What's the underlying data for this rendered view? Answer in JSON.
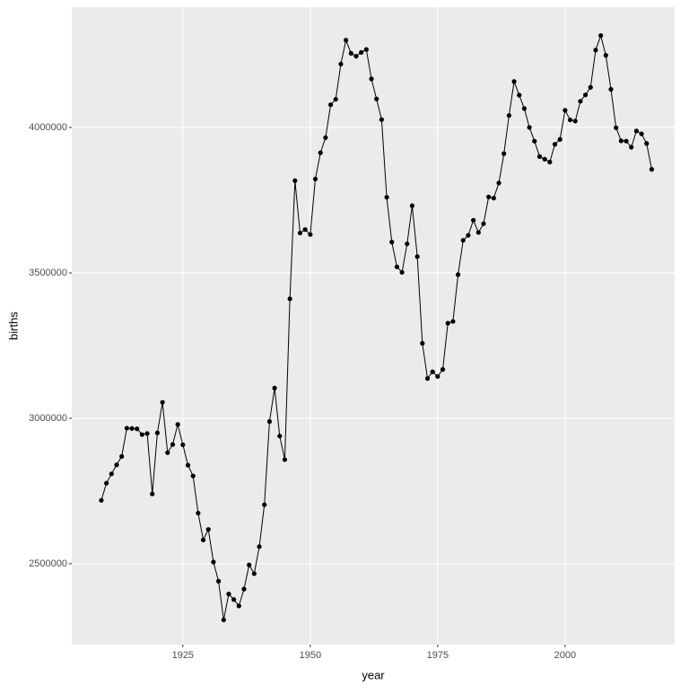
{
  "chart_data": {
    "type": "line",
    "x_label": "year",
    "y_label": "births",
    "x": [
      1909,
      1910,
      1911,
      1912,
      1913,
      1914,
      1915,
      1916,
      1917,
      1918,
      1919,
      1920,
      1921,
      1922,
      1923,
      1924,
      1925,
      1926,
      1927,
      1928,
      1929,
      1930,
      1931,
      1932,
      1933,
      1934,
      1935,
      1936,
      1937,
      1938,
      1939,
      1940,
      1941,
      1942,
      1943,
      1944,
      1945,
      1946,
      1947,
      1948,
      1949,
      1950,
      1951,
      1952,
      1953,
      1954,
      1955,
      1956,
      1957,
      1958,
      1959,
      1960,
      1961,
      1962,
      1963,
      1964,
      1965,
      1966,
      1967,
      1968,
      1969,
      1970,
      1971,
      1972,
      1973,
      1974,
      1975,
      1976,
      1977,
      1978,
      1979,
      1980,
      1981,
      1982,
      1983,
      1984,
      1985,
      1986,
      1987,
      1988,
      1989,
      1990,
      1991,
      1992,
      1993,
      1994,
      1995,
      1996,
      1997,
      1998,
      1999,
      2000,
      2001,
      2002,
      2003,
      2004,
      2005,
      2006,
      2007,
      2008,
      2009,
      2010,
      2011,
      2012,
      2013,
      2014,
      2015,
      2016,
      2017
    ],
    "values": [
      2718000,
      2777000,
      2809000,
      2840000,
      2869000,
      2966000,
      2965000,
      2964000,
      2944000,
      2948000,
      2740000,
      2950000,
      3055000,
      2882000,
      2910000,
      2979000,
      2909000,
      2839000,
      2802000,
      2674000,
      2582000,
      2618000,
      2506000,
      2440000,
      2307000,
      2396000,
      2377000,
      2355000,
      2413000,
      2496000,
      2466000,
      2559000,
      2703000,
      2989000,
      3104000,
      2939000,
      2858000,
      3411000,
      3817000,
      3637000,
      3649000,
      3632000,
      3823000,
      3913000,
      3965000,
      4078000,
      4097000,
      4218000,
      4300000,
      4255000,
      4245000,
      4258000,
      4268000,
      4167000,
      4098000,
      4027000,
      3760000,
      3606000,
      3521000,
      3502000,
      3600000,
      3731000,
      3556000,
      3258000,
      3137000,
      3160000,
      3144000,
      3168000,
      3327000,
      3333000,
      3494000,
      3612000,
      3629000,
      3681000,
      3639000,
      3669000,
      3761000,
      3757000,
      3809000,
      3910000,
      4041000,
      4158000,
      4111000,
      4065000,
      4000000,
      3953000,
      3900000,
      3891000,
      3881000,
      3942000,
      3959000,
      4059000,
      4026000,
      4022000,
      4090000,
      4112000,
      4138000,
      4266000,
      4316000,
      4248000,
      4131000,
      3999000,
      3954000,
      3953000,
      3932000,
      3988000,
      3978000,
      3945000,
      3856000
    ],
    "color": "#000000",
    "xlim": [
      1903.2,
      2021.5
    ],
    "xticks": [
      1925,
      1950,
      1975,
      2000
    ],
    "ylim": [
      2222000,
      4413500
    ],
    "yticks": [
      2500000,
      3000000,
      3500000,
      4000000
    ],
    "grid": true
  }
}
